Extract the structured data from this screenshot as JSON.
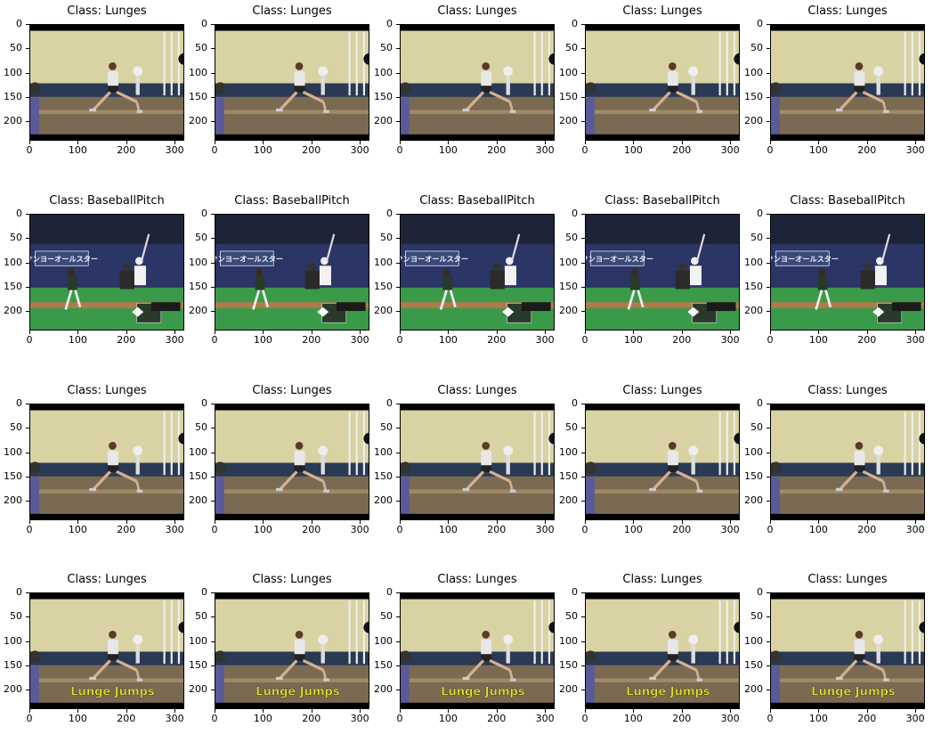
{
  "grid": {
    "rows": [
      {
        "title": "Class: Lunges",
        "scene": "gym",
        "caption": "",
        "pose": "lunge"
      },
      {
        "title": "Class: BaseballPitch",
        "scene": "baseball",
        "caption": "",
        "pose": "pitch"
      },
      {
        "title": "Class: Lunges",
        "scene": "gym",
        "caption": "",
        "pose": "lunge"
      },
      {
        "title": "Class: Lunges",
        "scene": "gym",
        "caption": "Lunge Jumps",
        "pose": "lunge"
      }
    ],
    "columns": 5
  },
  "axes": {
    "y_ticks": [
      "0",
      "50",
      "100",
      "150",
      "200"
    ],
    "y_values": [
      0,
      50,
      100,
      150,
      200
    ],
    "y_max": 240,
    "x_ticks": [
      "0",
      "100",
      "200",
      "300"
    ],
    "x_values": [
      0,
      100,
      200,
      300
    ],
    "x_max": 320
  },
  "baseball_banner": "サンヨーオールスター",
  "colors": {
    "gym_wall": "#d9d2a3",
    "gym_floor": "#7a6a52",
    "field_green": "#3a9a4a",
    "stands_blue": "#2b3566",
    "caption_yellow": "#e8e02a"
  }
}
